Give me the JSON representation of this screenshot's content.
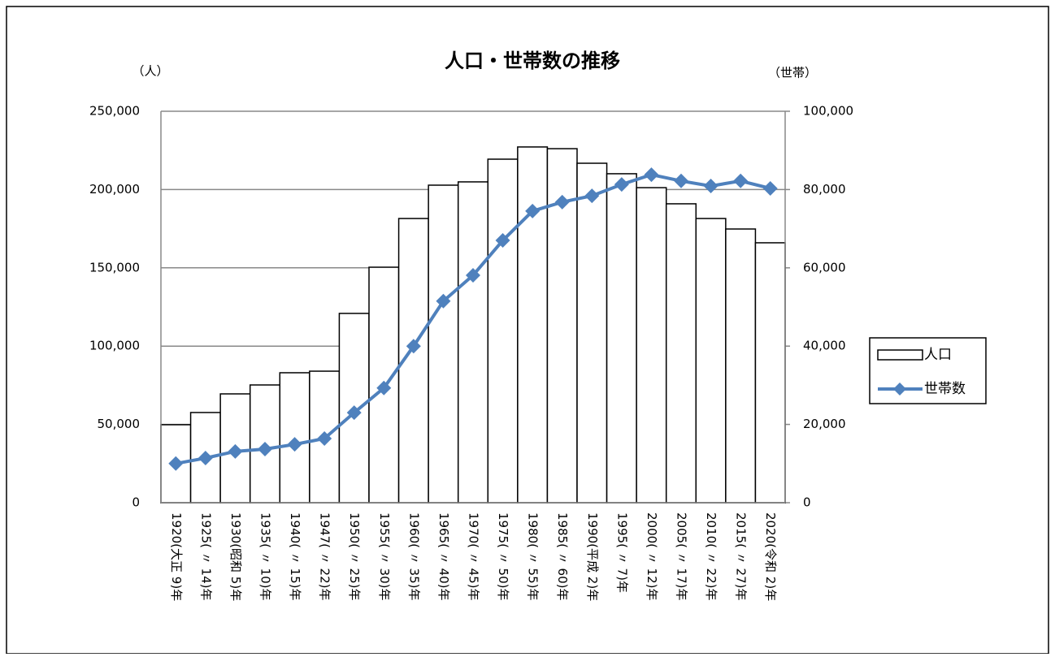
{
  "chart_data": {
    "type": "bar_line",
    "title": "人口・世帯数の推移",
    "y_label": "（人）",
    "y2_label": "（世帯）",
    "categories": [
      "1920(大正 9)年",
      "1925( 〃 14)年",
      "1930(昭和 5)年",
      "1935( 〃 10)年",
      "1940( 〃 15)年",
      "1947( 〃 22)年",
      "1950( 〃 25)年",
      "1955( 〃 30)年",
      "1960( 〃 35)年",
      "1965( 〃 40)年",
      "1970( 〃 45)年",
      "1975( 〃 50)年",
      "1980( 〃 55)年",
      "1985( 〃 60)年",
      "1990(平成 2)年",
      "1995( 〃 7)年",
      "2000( 〃 12)年",
      "2005( 〃 17)年",
      "2010( 〃 22)年",
      "2015( 〃 27)年",
      "2020(令和 2)年"
    ],
    "series": [
      {
        "name": "人口",
        "type": "bar",
        "color": "#ffffff",
        "values": [
          49800,
          57600,
          69500,
          75200,
          83000,
          84000,
          120900,
          150400,
          181500,
          202800,
          204900,
          219400,
          227200,
          226100,
          216800,
          210100,
          201200,
          190900,
          181500,
          174800,
          166000
        ]
      },
      {
        "name": "世帯数",
        "type": "line",
        "axis": "y2",
        "color": "#4f81bd",
        "values": [
          10000,
          11400,
          13100,
          13700,
          14900,
          16400,
          23000,
          29300,
          40000,
          51500,
          58100,
          67000,
          74500,
          76800,
          78400,
          81300,
          83800,
          82200,
          80900,
          82200,
          80300
        ]
      }
    ],
    "ylim": [
      0,
      250000
    ],
    "yticks": [
      0,
      {
        "value": 50000,
        "label": "50,000"
      },
      {
        "value": 100000,
        "label": "100,000"
      },
      {
        "value": 150000,
        "label": "150,000"
      },
      {
        "value": 200000,
        "label": "200,000"
      },
      {
        "value": 250000,
        "label": "250,000"
      }
    ],
    "y2lim": [
      0,
      100000
    ],
    "y2ticks": [
      0,
      {
        "value": 20000,
        "label": "20,000"
      },
      {
        "value": 40000,
        "label": "40,000"
      },
      {
        "value": 60000,
        "label": "60,000"
      },
      {
        "value": 80000,
        "label": "80,000"
      },
      {
        "value": 100000,
        "label": "100,000"
      }
    ],
    "grid": true,
    "legend": "right"
  }
}
